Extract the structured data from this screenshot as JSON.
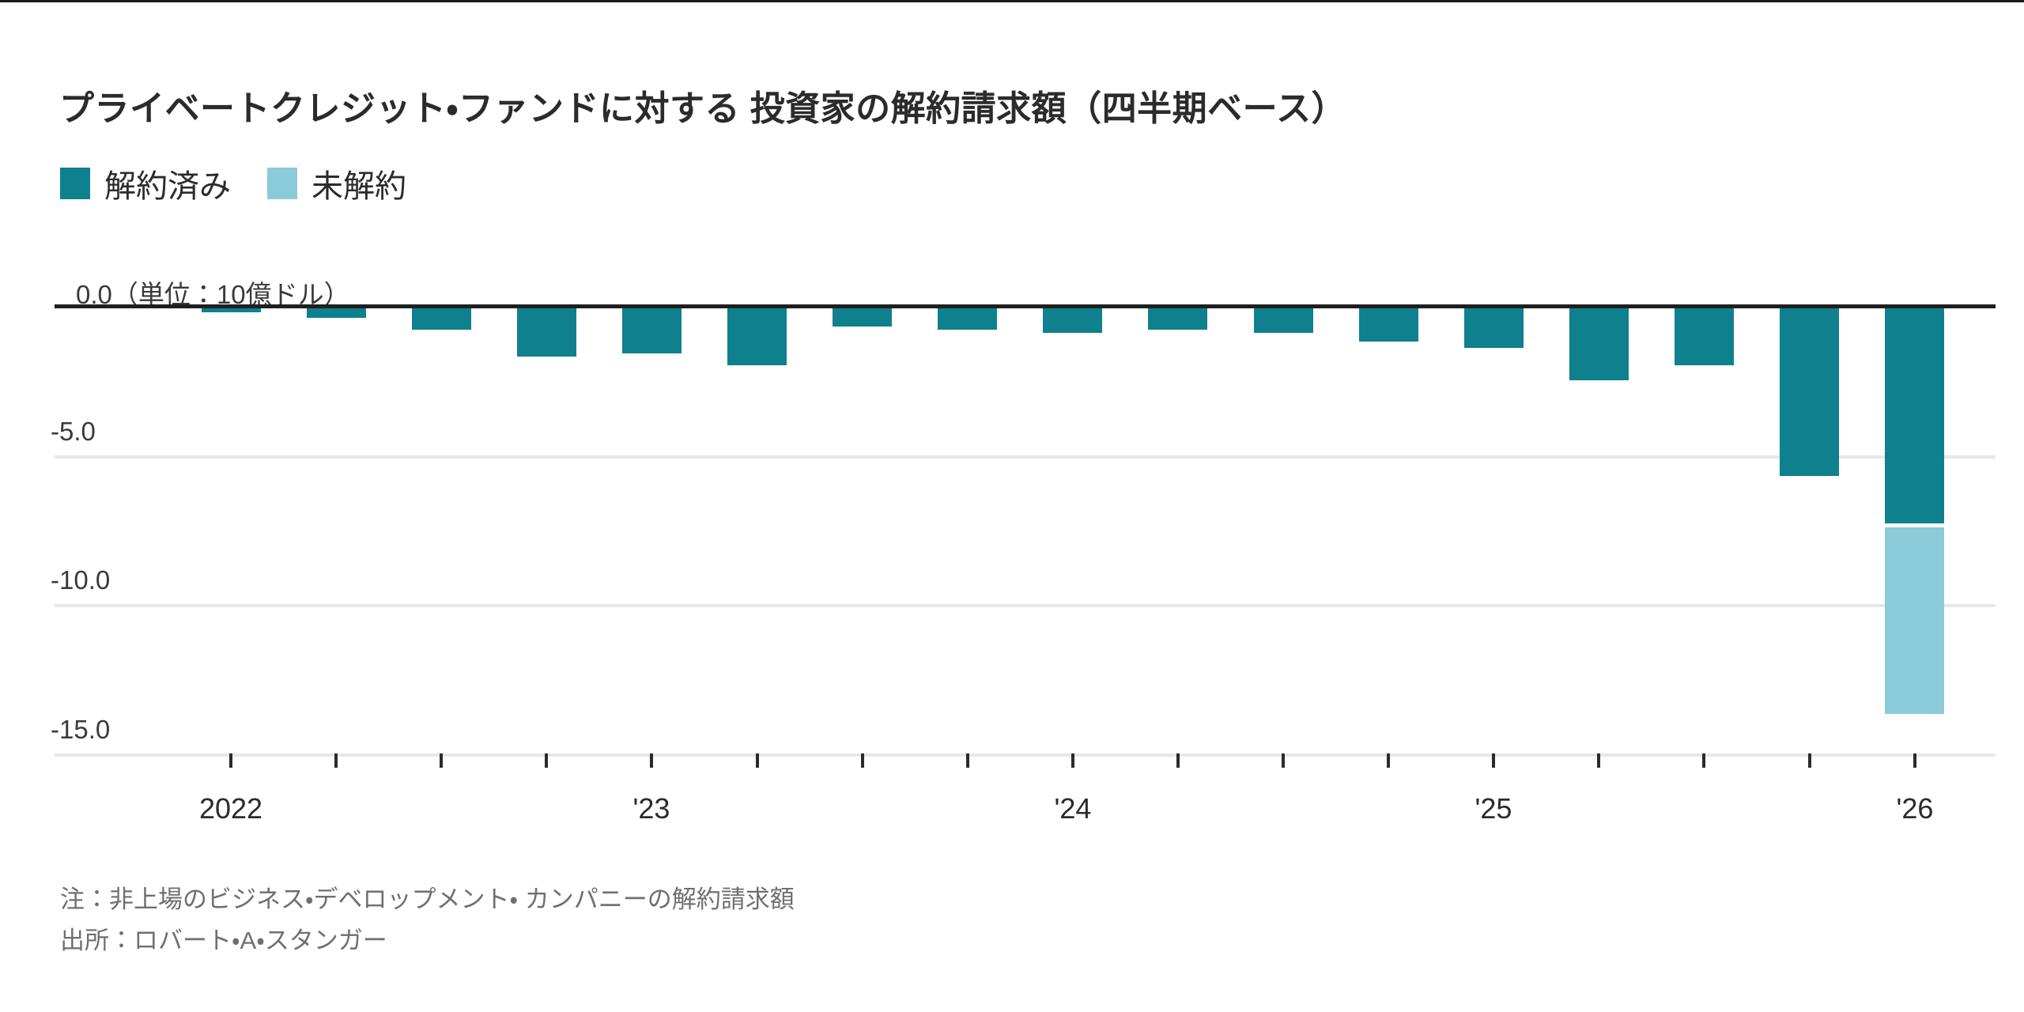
{
  "title": "プライベートクレジット・ファンドに対する 投資家の解約請求額（四半期ベース）",
  "legend": [
    {
      "label": "解約済み",
      "color": "#0f808d"
    },
    {
      "label": "未解約",
      "color": "#8bcad8"
    }
  ],
  "y_axis": {
    "top_label": "0.0（単位：10億ドル）",
    "tick_labels": [
      "-5.0",
      "-10.0",
      "-15.0"
    ],
    "tick_values": [
      -5,
      -10,
      -15
    ]
  },
  "x_axis": {
    "labels": [
      {
        "text": "2022",
        "index": 0
      },
      {
        "text": "'23",
        "index": 4
      },
      {
        "text": "'24",
        "index": 8
      },
      {
        "text": "'25",
        "index": 12
      },
      {
        "text": "'26",
        "index": 16
      }
    ]
  },
  "notes": [
    "注：非上場のビジネス・デベロップメント・ カンパニーの解約請求額",
    "出所：ロバート・A・スタンガー"
  ],
  "chart_data": {
    "type": "bar",
    "stacked": true,
    "title": "プライベートクレジット・ファンドに対する 投資家の解約請求額（四半期ベース）",
    "unit_label": "単位：10億ドル",
    "categories": [
      "2022 Q1",
      "2022 Q2",
      "2022 Q3",
      "2022 Q4",
      "2023 Q1",
      "2023 Q2",
      "2023 Q3",
      "2023 Q4",
      "2024 Q1",
      "2024 Q2",
      "2024 Q3",
      "2024 Q4",
      "2025 Q1",
      "2025 Q2",
      "2025 Q3",
      "2025 Q4",
      "2026 Q1"
    ],
    "series": [
      {
        "name": "解約済み",
        "color": "#0f808d",
        "values": [
          -0.2,
          -0.4,
          -0.8,
          -1.7,
          -1.6,
          -2.0,
          -0.7,
          -0.8,
          -0.9,
          -0.8,
          -0.9,
          -1.2,
          -1.4,
          -2.5,
          -2.0,
          -5.7,
          -7.3
        ]
      },
      {
        "name": "未解約",
        "color": "#8bcad8",
        "values": [
          0,
          0,
          0,
          0,
          0,
          0,
          0,
          0,
          0,
          0,
          0,
          0,
          0,
          0,
          0,
          0,
          -6.4
        ]
      }
    ],
    "ylim": [
      -15.5,
      0
    ],
    "gridlines": [
      0,
      -5,
      -10,
      -15
    ],
    "grid": true,
    "legend_position": "top-left"
  }
}
